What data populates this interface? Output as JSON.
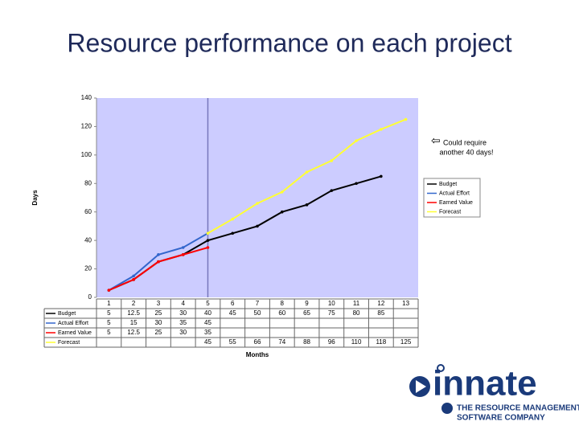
{
  "title": "Resource performance on each project",
  "chart_data": {
    "type": "line",
    "categories": [
      "1",
      "2",
      "3",
      "4",
      "5",
      "6",
      "7",
      "8",
      "9",
      "10",
      "11",
      "12",
      "13"
    ],
    "series": [
      {
        "name": "Budget",
        "color": "#000000",
        "values": [
          5,
          12.5,
          25,
          30,
          40,
          45,
          50,
          60,
          65,
          75,
          80,
          85,
          null
        ]
      },
      {
        "name": "Actual Effort",
        "color": "#3366cc",
        "values": [
          5,
          15,
          30,
          35,
          45,
          null,
          null,
          null,
          null,
          null,
          null,
          null,
          null
        ]
      },
      {
        "name": "Earned Value",
        "color": "#ff0000",
        "values": [
          5,
          12.5,
          25,
          30,
          35,
          null,
          null,
          null,
          null,
          null,
          null,
          null,
          null
        ]
      },
      {
        "name": "Forecast",
        "color": "#ffff33",
        "values": [
          null,
          null,
          null,
          null,
          45,
          55,
          66,
          74,
          88,
          96,
          110,
          118,
          125
        ]
      }
    ],
    "ylim": [
      0,
      140
    ],
    "yticks": [
      0,
      20,
      40,
      60,
      80,
      100,
      120,
      140
    ],
    "y_label": "Days",
    "x_label": "Months",
    "annotation": [
      "Could require",
      "another 40 days!"
    ]
  },
  "logo": {
    "name": "innate",
    "line1": "THE RESOURCE MANAGEMENT",
    "line2": "SOFTWARE COMPANY"
  }
}
